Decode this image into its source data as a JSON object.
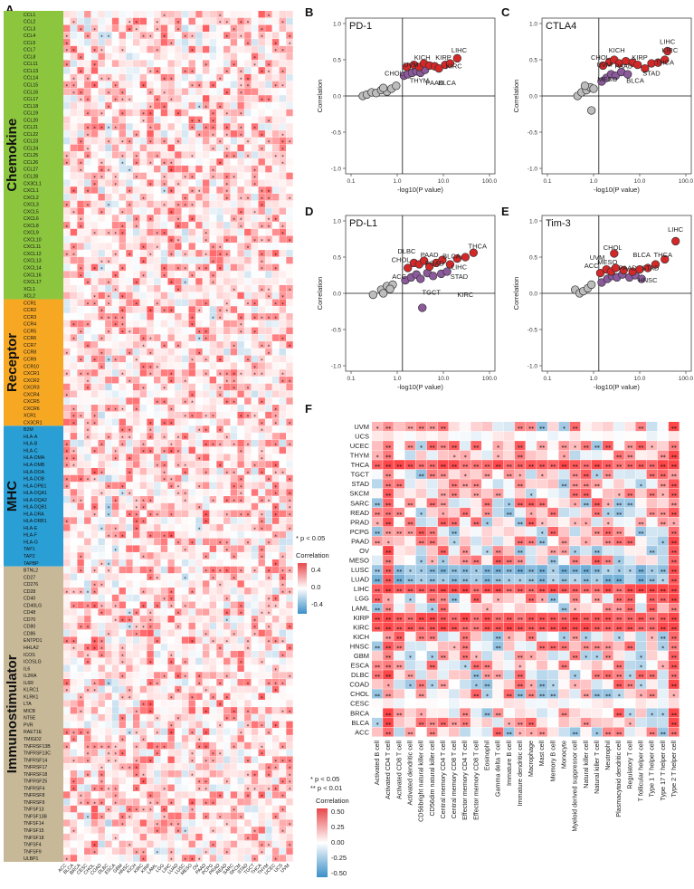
{
  "panel_labels": [
    "A",
    "B",
    "C",
    "D",
    "E",
    "F"
  ],
  "colors": {
    "chemokine": "#8cc63f",
    "receptor": "#f7a823",
    "mhc": "#2a9fd6",
    "immunostimulator": "#c7b897",
    "pos": "#e8474a",
    "neg": "#3a8fc8",
    "sig_point": "#d62728",
    "mid_point": "#8c5a9c",
    "ns_point": "#bdbdbd"
  },
  "chart_data": [
    {
      "id": "A",
      "type": "heatmap",
      "title": "",
      "categories": [
        {
          "name": "Chemokine",
          "genes": [
            "CCL1",
            "CCL2",
            "CCL3",
            "CCL4",
            "CCL5",
            "CCL7",
            "CCL8",
            "CCL11",
            "CCL13",
            "CCL14",
            "CCL15",
            "CCL16",
            "CCL17",
            "CCL18",
            "CCL19",
            "CCL20",
            "CCL21",
            "CCL22",
            "CCL23",
            "CCL24",
            "CCL25",
            "CCL26",
            "CCL27",
            "CCL28",
            "CX3CL1",
            "CXCL1",
            "CXCL2",
            "CXCL3",
            "CXCL5",
            "CXCL6",
            "CXCL8",
            "CXCL9",
            "CXCL10",
            "CXCL11",
            "CXCL12",
            "CXCL13",
            "CXCL14",
            "CXCL16",
            "CXCL17",
            "XCL1",
            "XCL2"
          ]
        },
        {
          "name": "Receptor",
          "genes": [
            "CCR1",
            "CCR2",
            "CCR3",
            "CCR4",
            "CCR5",
            "CCR6",
            "CCR7",
            "CCR8",
            "CCR9",
            "CCR10",
            "CXCR1",
            "CXCR2",
            "CXCR3",
            "CXCR4",
            "CXCR5",
            "CXCR6",
            "XCR1",
            "CX3CR1"
          ]
        },
        {
          "name": "MHC",
          "genes": [
            "B2M",
            "HLA-A",
            "HLA-B",
            "HLA-C",
            "HLA-DMA",
            "HLA-DMB",
            "HLA-DOA",
            "HLA-DOB",
            "HLA-DPB1",
            "HLA-DQA1",
            "HLA-DQA2",
            "HLA-DQB1",
            "HLA-DRA",
            "HLA-DRB1",
            "HLA-E",
            "HLA-F",
            "HLA-G",
            "TAP1",
            "TAP2",
            "TAPBP"
          ]
        },
        {
          "name": "Immunostimulator",
          "genes": [
            "BTNL2",
            "CD27",
            "CD276",
            "CD28",
            "CD40",
            "CD40LG",
            "CD48",
            "CD70",
            "CD80",
            "CD86",
            "ENTPD1",
            "HHLA2",
            "ICOS",
            "ICOSLG",
            "IL6",
            "IL2RA",
            "IL6R",
            "KLRC1",
            "KLRK1",
            "LTA",
            "MICB",
            "NT5E",
            "PVR",
            "RAET1E",
            "TMIGD2",
            "TNFRSF13B",
            "TNFRSF13C",
            "TNFRSF14",
            "TNFRSF17",
            "TNFRSF18",
            "TNFRSF25",
            "TNFRSF4",
            "TNFRSF8",
            "TNFRSF9",
            "TNFSF13",
            "TNFSF13B",
            "TNFSF14",
            "TNFSF15",
            "TNFSF18",
            "TNFSF4",
            "TNFSF9",
            "ULBP1"
          ]
        }
      ],
      "columns": [
        "ACC",
        "BLCA",
        "BRCA",
        "CESC",
        "CHOL",
        "COAD",
        "DLBC",
        "ESCA",
        "GBM",
        "HNSC",
        "KICH",
        "KIRC",
        "KIRP",
        "LAML",
        "LGG",
        "LIHC",
        "LUAD",
        "LUSC",
        "MESO",
        "OV",
        "PAAD",
        "PCPG",
        "PRAD",
        "READ",
        "SARC",
        "SKCM",
        "STAD",
        "TGCT",
        "THCA",
        "THYM",
        "UCEC",
        "UCS",
        "UVM"
      ],
      "legend": {
        "title": "Correlation",
        "ticks": [
          "0.4",
          "0.0",
          "-0.4"
        ],
        "note": "* p < 0.05"
      }
    },
    {
      "id": "B",
      "type": "scatter",
      "title": "PD-1",
      "xlabel": "-log10(P value)",
      "ylabel": "Correlation",
      "xscale": "log",
      "xlim": [
        0.1,
        100
      ],
      "ylim": [
        -1.0,
        1.0
      ],
      "xticks": [
        "0.1",
        "1.0",
        "10.0",
        "100.0"
      ],
      "yticks": [
        "1.0",
        "0.5",
        "0.0",
        "-0.5",
        "-1.0"
      ],
      "labels": [
        {
          "text": "LIHC",
          "x": 22,
          "y": 0.6
        },
        {
          "text": "KICH",
          "x": 3.5,
          "y": 0.5
        },
        {
          "text": "KIRP",
          "x": 10,
          "y": 0.5
        },
        {
          "text": "UVM",
          "x": 2.0,
          "y": 0.4
        },
        {
          "text": "KIRC",
          "x": 17,
          "y": 0.38
        },
        {
          "text": "CHOL",
          "x": 0.85,
          "y": 0.28
        },
        {
          "text": "THYM",
          "x": 3.0,
          "y": 0.18
        },
        {
          "text": "PAAD",
          "x": 6.5,
          "y": 0.15
        },
        {
          "text": "BLCA",
          "x": 12,
          "y": 0.15
        }
      ],
      "points": [
        {
          "x": 0.18,
          "y": 0.0,
          "g": "ns"
        },
        {
          "x": 0.22,
          "y": 0.02,
          "g": "ns"
        },
        {
          "x": 0.28,
          "y": 0.05,
          "g": "ns"
        },
        {
          "x": 0.35,
          "y": 0.04,
          "g": "ns"
        },
        {
          "x": 0.45,
          "y": 0.08,
          "g": "ns"
        },
        {
          "x": 0.6,
          "y": 0.06,
          "g": "ns"
        },
        {
          "x": 0.75,
          "y": 0.1,
          "g": "ns"
        },
        {
          "x": 0.95,
          "y": 0.14,
          "g": "ns"
        },
        {
          "x": 0.5,
          "y": 0.11,
          "g": "ns"
        },
        {
          "x": 1.4,
          "y": 0.28,
          "g": "mid"
        },
        {
          "x": 1.7,
          "y": 0.3,
          "g": "mid"
        },
        {
          "x": 2.1,
          "y": 0.32,
          "g": "mid"
        },
        {
          "x": 2.6,
          "y": 0.34,
          "g": "mid"
        },
        {
          "x": 3.2,
          "y": 0.32,
          "g": "mid"
        },
        {
          "x": 4.0,
          "y": 0.36,
          "g": "mid"
        },
        {
          "x": 1.6,
          "y": 0.4,
          "g": "sig"
        },
        {
          "x": 2.3,
          "y": 0.43,
          "g": "sig"
        },
        {
          "x": 3.0,
          "y": 0.4,
          "g": "sig"
        },
        {
          "x": 3.8,
          "y": 0.45,
          "g": "sig"
        },
        {
          "x": 5.0,
          "y": 0.42,
          "g": "sig"
        },
        {
          "x": 6.5,
          "y": 0.41,
          "g": "sig"
        },
        {
          "x": 8.0,
          "y": 0.38,
          "g": "sig"
        },
        {
          "x": 11.0,
          "y": 0.43,
          "g": "sig"
        },
        {
          "x": 14.0,
          "y": 0.45,
          "g": "sig"
        },
        {
          "x": 20.0,
          "y": 0.52,
          "g": "sig"
        }
      ]
    },
    {
      "id": "C",
      "type": "scatter",
      "title": "CTLA4",
      "xlabel": "-log10(P value)",
      "ylabel": "Correlation",
      "xscale": "log",
      "xlim": [
        0.1,
        100
      ],
      "ylim": [
        -1.0,
        1.0
      ],
      "xticks": [
        "0.1",
        "1.0",
        "10.0",
        "100.0"
      ],
      "yticks": [
        "1.0",
        "0.5",
        "0.0",
        "-0.5",
        "-1.0"
      ],
      "labels": [
        {
          "text": "LIHC",
          "x": 40,
          "y": 0.72
        },
        {
          "text": "KIRC",
          "x": 45,
          "y": 0.6
        },
        {
          "text": "KICH",
          "x": 3.2,
          "y": 0.6
        },
        {
          "text": "CHOL",
          "x": 1.4,
          "y": 0.5
        },
        {
          "text": "KIRP",
          "x": 10,
          "y": 0.5
        },
        {
          "text": "THCA",
          "x": 35,
          "y": 0.43
        },
        {
          "text": "UVM",
          "x": 1.7,
          "y": 0.4
        },
        {
          "text": "PAAD",
          "x": 4.5,
          "y": 0.38
        },
        {
          "text": "STAD",
          "x": 18,
          "y": 0.28
        },
        {
          "text": "BLCA",
          "x": 8,
          "y": 0.18
        },
        {
          "text": "MESO",
          "x": 2.0,
          "y": 0.2
        }
      ],
      "points": [
        {
          "x": 0.45,
          "y": 0.0,
          "g": "ns"
        },
        {
          "x": 0.55,
          "y": 0.05,
          "g": "ns"
        },
        {
          "x": 0.7,
          "y": 0.08,
          "g": "ns"
        },
        {
          "x": 0.85,
          "y": 0.12,
          "g": "ns"
        },
        {
          "x": 1.0,
          "y": 0.1,
          "g": "ns"
        },
        {
          "x": 0.9,
          "y": -0.2,
          "g": "ns"
        },
        {
          "x": 0.65,
          "y": 0.14,
          "g": "ns"
        },
        {
          "x": 1.5,
          "y": 0.2,
          "g": "mid"
        },
        {
          "x": 1.9,
          "y": 0.25,
          "g": "mid"
        },
        {
          "x": 2.4,
          "y": 0.3,
          "g": "mid"
        },
        {
          "x": 3.0,
          "y": 0.28,
          "g": "mid"
        },
        {
          "x": 4.0,
          "y": 0.33,
          "g": "mid"
        },
        {
          "x": 5.5,
          "y": 0.3,
          "g": "mid"
        },
        {
          "x": 1.6,
          "y": 0.42,
          "g": "sig"
        },
        {
          "x": 2.2,
          "y": 0.47,
          "g": "sig"
        },
        {
          "x": 2.8,
          "y": 0.5,
          "g": "sig"
        },
        {
          "x": 3.6,
          "y": 0.45,
          "g": "sig"
        },
        {
          "x": 5.0,
          "y": 0.48,
          "g": "sig"
        },
        {
          "x": 7.0,
          "y": 0.46,
          "g": "sig"
        },
        {
          "x": 9.0,
          "y": 0.43,
          "g": "sig"
        },
        {
          "x": 13.0,
          "y": 0.38,
          "g": "sig"
        },
        {
          "x": 18.0,
          "y": 0.45,
          "g": "sig"
        },
        {
          "x": 25.0,
          "y": 0.46,
          "g": "sig"
        },
        {
          "x": 35.0,
          "y": 0.5,
          "g": "sig"
        },
        {
          "x": 40.0,
          "y": 0.62,
          "g": "sig"
        }
      ]
    },
    {
      "id": "D",
      "type": "scatter",
      "title": "PD-L1",
      "xlabel": "-log10(P value)",
      "ylabel": "Correlation",
      "xscale": "log",
      "xlim": [
        0.1,
        100
      ],
      "ylim": [
        -1.0,
        1.0
      ],
      "xticks": [
        "0.1",
        "1.0",
        "10.0",
        "100.0"
      ],
      "yticks": [
        "1.0",
        "0.5",
        "0.0",
        "-0.5",
        "-1.0"
      ],
      "labels": [
        {
          "text": "THCA",
          "x": 55,
          "y": 0.62
        },
        {
          "text": "DLBC",
          "x": 1.6,
          "y": 0.55
        },
        {
          "text": "PAAD",
          "x": 5.0,
          "y": 0.5
        },
        {
          "text": "BLCA",
          "x": 15,
          "y": 0.48
        },
        {
          "text": "CHOL",
          "x": 1.2,
          "y": 0.43
        },
        {
          "text": "PRAD",
          "x": 6.5,
          "y": 0.38
        },
        {
          "text": "LIHC",
          "x": 22,
          "y": 0.33
        },
        {
          "text": "ACC",
          "x": 1.1,
          "y": 0.2
        },
        {
          "text": "STAD",
          "x": 22,
          "y": 0.2
        },
        {
          "text": "TGCT",
          "x": 5.5,
          "y": -0.02
        },
        {
          "text": "KIRC",
          "x": 30,
          "y": -0.05
        }
      ],
      "points": [
        {
          "x": 0.3,
          "y": -0.02,
          "g": "ns"
        },
        {
          "x": 0.45,
          "y": 0.05,
          "g": "ns"
        },
        {
          "x": 0.6,
          "y": 0.1,
          "g": "ns"
        },
        {
          "x": 0.8,
          "y": 0.12,
          "g": "ns"
        },
        {
          "x": 0.5,
          "y": 0.0,
          "g": "ns"
        },
        {
          "x": 0.7,
          "y": 0.06,
          "g": "ns"
        },
        {
          "x": 1.5,
          "y": 0.18,
          "g": "mid"
        },
        {
          "x": 2.0,
          "y": 0.22,
          "g": "mid"
        },
        {
          "x": 2.6,
          "y": 0.26,
          "g": "mid"
        },
        {
          "x": 3.2,
          "y": 0.2,
          "g": "mid"
        },
        {
          "x": 4.5,
          "y": 0.28,
          "g": "mid"
        },
        {
          "x": 6.0,
          "y": 0.24,
          "g": "mid"
        },
        {
          "x": 9.0,
          "y": 0.27,
          "g": "mid"
        },
        {
          "x": 12.0,
          "y": 0.3,
          "g": "mid"
        },
        {
          "x": 3.5,
          "y": -0.2,
          "g": "mid"
        },
        {
          "x": 1.7,
          "y": 0.35,
          "g": "sig"
        },
        {
          "x": 2.3,
          "y": 0.42,
          "g": "sig"
        },
        {
          "x": 3.0,
          "y": 0.4,
          "g": "sig"
        },
        {
          "x": 3.8,
          "y": 0.45,
          "g": "sig"
        },
        {
          "x": 5.0,
          "y": 0.37,
          "g": "sig"
        },
        {
          "x": 7.0,
          "y": 0.42,
          "g": "sig"
        },
        {
          "x": 9.5,
          "y": 0.46,
          "g": "sig"
        },
        {
          "x": 14.0,
          "y": 0.4,
          "g": "sig"
        },
        {
          "x": 20.0,
          "y": 0.48,
          "g": "sig"
        },
        {
          "x": 30.0,
          "y": 0.5,
          "g": "sig"
        },
        {
          "x": 45.0,
          "y": 0.56,
          "g": "sig"
        }
      ]
    },
    {
      "id": "E",
      "type": "scatter",
      "title": "Tim-3",
      "xlabel": "-log10(P value)",
      "ylabel": "Correlation",
      "xscale": "log",
      "xlim": [
        0.1,
        100
      ],
      "ylim": [
        -1.0,
        1.0
      ],
      "xticks": [
        "0.1",
        "1.0",
        "10.0",
        "100.0"
      ],
      "yticks": [
        "1.0",
        "0.5",
        "0.0",
        "-0.5",
        "-1.0"
      ],
      "labels": [
        {
          "text": "LIHC",
          "x": 60,
          "y": 0.85
        },
        {
          "text": "CHOL",
          "x": 2.6,
          "y": 0.6
        },
        {
          "text": "UVM",
          "x": 1.2,
          "y": 0.46
        },
        {
          "text": "BLCA",
          "x": 11,
          "y": 0.5
        },
        {
          "text": "THCA",
          "x": 32,
          "y": 0.5
        },
        {
          "text": "MESO",
          "x": 2.0,
          "y": 0.4
        },
        {
          "text": "ACC",
          "x": 0.9,
          "y": 0.35
        },
        {
          "text": "PAAD",
          "x": 5.5,
          "y": 0.32
        },
        {
          "text": "STAD",
          "x": 17,
          "y": 0.32
        },
        {
          "text": "HNSC",
          "x": 15,
          "y": 0.15
        }
      ],
      "points": [
        {
          "x": 0.4,
          "y": 0.05,
          "g": "ns"
        },
        {
          "x": 0.5,
          "y": 0.0,
          "g": "ns"
        },
        {
          "x": 0.6,
          "y": 0.03,
          "g": "ns"
        },
        {
          "x": 0.75,
          "y": 0.07,
          "g": "ns"
        },
        {
          "x": 0.9,
          "y": 0.12,
          "g": "ns"
        },
        {
          "x": 1.5,
          "y": 0.15,
          "g": "mid"
        },
        {
          "x": 2.0,
          "y": 0.2,
          "g": "mid"
        },
        {
          "x": 2.5,
          "y": 0.24,
          "g": "mid"
        },
        {
          "x": 3.2,
          "y": 0.22,
          "g": "mid"
        },
        {
          "x": 4.2,
          "y": 0.26,
          "g": "mid"
        },
        {
          "x": 6.0,
          "y": 0.22,
          "g": "mid"
        },
        {
          "x": 8.0,
          "y": 0.25,
          "g": "mid"
        },
        {
          "x": 11.0,
          "y": 0.2,
          "g": "mid"
        },
        {
          "x": 1.4,
          "y": 0.28,
          "g": "sig"
        },
        {
          "x": 1.9,
          "y": 0.33,
          "g": "sig"
        },
        {
          "x": 2.4,
          "y": 0.3,
          "g": "sig"
        },
        {
          "x": 3.0,
          "y": 0.35,
          "g": "sig"
        },
        {
          "x": 2.8,
          "y": 0.55,
          "g": "sig"
        },
        {
          "x": 4.5,
          "y": 0.32,
          "g": "sig"
        },
        {
          "x": 7.0,
          "y": 0.3,
          "g": "sig"
        },
        {
          "x": 10.0,
          "y": 0.33,
          "g": "sig"
        },
        {
          "x": 15.0,
          "y": 0.35,
          "g": "sig"
        },
        {
          "x": 22.0,
          "y": 0.4,
          "g": "sig"
        },
        {
          "x": 35.0,
          "y": 0.47,
          "g": "sig"
        },
        {
          "x": 60.0,
          "y": 0.72,
          "g": "sig"
        }
      ]
    },
    {
      "id": "F",
      "type": "heatmap",
      "rows": [
        "UVM",
        "UCS",
        "UCEC",
        "THYM",
        "THCA",
        "TGCT",
        "STAD",
        "SKCM",
        "SARC",
        "READ",
        "PRAD",
        "PCPG",
        "PAAD",
        "OV",
        "MESO",
        "LUSC",
        "LUAD",
        "LIHC",
        "LGG",
        "LAML",
        "KIRP",
        "KIRC",
        "KICH",
        "HNSC",
        "GBM",
        "ESCA",
        "DLBC",
        "COAD",
        "CHOL",
        "CESC",
        "BRCA",
        "BLCA",
        "ACC"
      ],
      "columns": [
        "Activated B cell",
        "Activated CD4 T cell",
        "Activated CD8 T cell",
        "Activated dendritic cell",
        "CD56bright natural killer cell",
        "CD56dim natural killer cell",
        "Central memory CD4 T cell",
        "Central memory CD8 T cell",
        "Effector memory CD4 T cell",
        "Effector memory CD8 T cell",
        "Eosinophil",
        "Gamma delta T cell",
        "Immature  B cell",
        "Immature dendritic cell",
        "Macrophage",
        "Mast cell",
        "Memory B cell",
        "Monocyte",
        "Myeloid derived suppressor cell",
        "Natural killer cell",
        "Natural killer T cell",
        "Neutrophil",
        "Plasmacytoid dendritic cell",
        "Regulatory T cell",
        "T follicular helper cell",
        "Type 1 T helper cell",
        "Type 17 T helper cell",
        "Type 2 T helper cell"
      ],
      "legend": {
        "title": "Correlation",
        "ticks": [
          "0.50",
          "0.25",
          "0.00",
          "-0.25",
          "-0.50"
        ],
        "note1": "* p < 0.05",
        "note2": "** p < 0.01"
      }
    }
  ]
}
